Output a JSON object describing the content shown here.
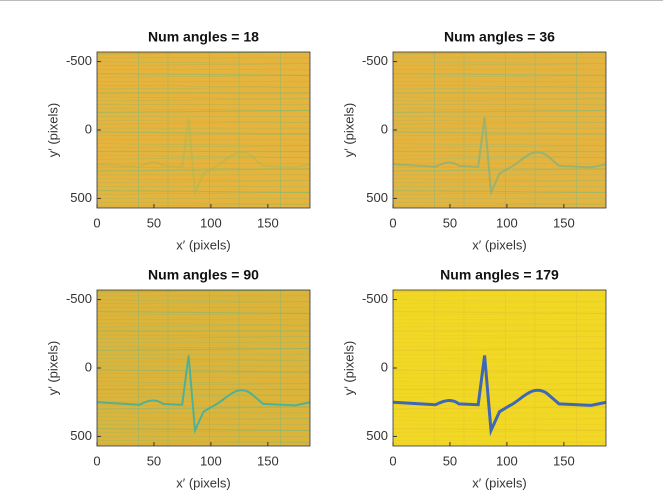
{
  "chart_data": [
    {
      "type": "image",
      "title": "Num angles = 18",
      "xlabel": "x′ (pixels)",
      "ylabel": "y′ (pixels)",
      "xlim": [
        0,
        187
      ],
      "ylim": [
        -570,
        570
      ],
      "xticks": [
        0,
        50,
        100,
        150
      ],
      "yticks": [
        -500,
        0,
        500
      ],
      "color": "#e6b43c",
      "stripe_color": "#78b878",
      "line_color": "#9cb860"
    },
    {
      "type": "image",
      "title": "Num angles = 36",
      "xlabel": "x′ (pixels)",
      "ylabel": "y′ (pixels)",
      "xlim": [
        0,
        187
      ],
      "ylim": [
        -570,
        570
      ],
      "xticks": [
        0,
        50,
        100,
        150
      ],
      "yticks": [
        -500,
        0,
        500
      ],
      "color": "#e4b43e",
      "stripe_color": "#80b880",
      "line_color": "#70b090"
    },
    {
      "type": "image",
      "title": "Num angles = 90",
      "xlabel": "x′ (pixels)",
      "ylabel": "y′ (pixels)",
      "xlim": [
        0,
        187
      ],
      "ylim": [
        -570,
        570
      ],
      "xticks": [
        0,
        50,
        100,
        150
      ],
      "yticks": [
        -500,
        0,
        500
      ],
      "color": "#dcb43a",
      "stripe_color": "#7cb47c",
      "line_color": "#40b0a0"
    },
    {
      "type": "image",
      "title": "Num angles = 179",
      "xlabel": "x′ (pixels)",
      "ylabel": "y′ (pixels)",
      "xlim": [
        0,
        187
      ],
      "ylim": [
        -570,
        570
      ],
      "xticks": [
        0,
        50,
        100,
        150
      ],
      "yticks": [
        -500,
        0,
        500
      ],
      "color": "#f0d824",
      "stripe_color": "#e8c030",
      "line_color": "#2a5cc8"
    }
  ]
}
